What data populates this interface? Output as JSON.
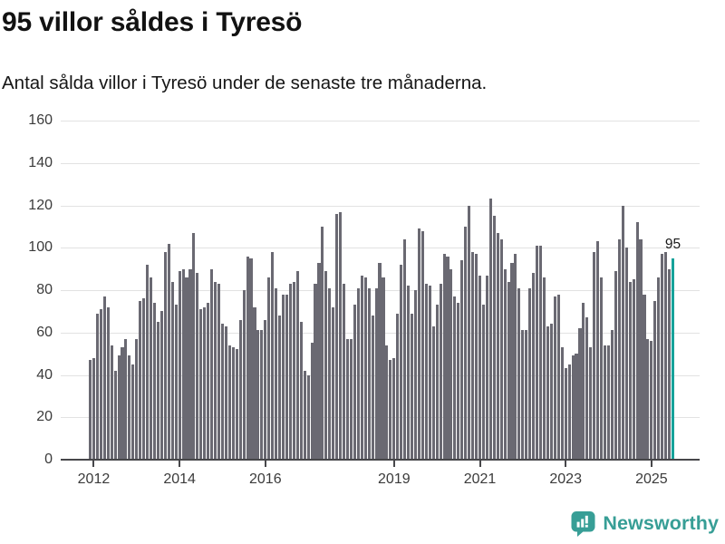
{
  "header": {
    "title": "95 villor såldes i Tyresö",
    "subtitle": "Antal sålda villor i Tyresö under de senaste tre månaderna."
  },
  "chart_data": {
    "type": "bar",
    "title": "95 villor såldes i Tyresö",
    "subtitle": "Antal sålda villor i Tyresö under de senaste tre månaderna.",
    "xlabel": "",
    "ylabel": "",
    "ylim": [
      0,
      160
    ],
    "y_ticks": [
      0,
      20,
      40,
      60,
      80,
      100,
      120,
      140,
      160
    ],
    "grid": "horizontal",
    "legend": "none",
    "x_ticks": [
      {
        "label": "2012",
        "index": 1
      },
      {
        "label": "2014",
        "index": 25
      },
      {
        "label": "2016",
        "index": 49
      },
      {
        "label": "2019",
        "index": 85
      },
      {
        "label": "2021",
        "index": 109
      },
      {
        "label": "2023",
        "index": 133
      },
      {
        "label": "2025",
        "index": 157
      }
    ],
    "values": [
      47,
      48,
      69,
      71,
      77,
      72,
      54,
      42,
      49,
      53,
      57,
      49,
      45,
      57,
      75,
      76,
      92,
      86,
      74,
      65,
      70,
      98,
      102,
      84,
      73,
      89,
      90,
      86,
      90,
      107,
      88,
      71,
      72,
      74,
      90,
      84,
      83,
      64,
      63,
      54,
      53,
      52,
      66,
      80,
      96,
      95,
      72,
      61,
      61,
      66,
      86,
      98,
      81,
      68,
      78,
      78,
      83,
      84,
      89,
      65,
      42,
      40,
      55,
      83,
      93,
      110,
      89,
      81,
      72,
      116,
      117,
      83,
      57,
      57,
      73,
      81,
      87,
      86,
      81,
      68,
      81,
      93,
      86,
      54,
      47,
      48,
      69,
      92,
      104,
      82,
      69,
      80,
      109,
      108,
      83,
      82,
      63,
      73,
      83,
      97,
      96,
      90,
      77,
      74,
      94,
      110,
      120,
      98,
      97,
      87,
      73,
      87,
      123,
      115,
      107,
      104,
      90,
      84,
      93,
      97,
      81,
      61,
      61,
      81,
      88,
      101,
      101,
      86,
      63,
      64,
      77,
      78,
      53,
      43,
      45,
      49,
      50,
      62,
      74,
      67,
      53,
      98,
      103,
      86,
      54,
      54,
      61,
      89,
      104,
      120,
      100,
      84,
      85,
      112,
      104,
      78,
      57,
      56,
      75,
      86,
      97,
      98,
      90,
      95
    ],
    "highlight": {
      "index": 163,
      "value": 95,
      "label": "95"
    },
    "colors": {
      "bar": "#6a6972",
      "highlight_bar": "#16a29a",
      "gridline": "#e2e2e2",
      "axis": "#47474a",
      "tick_text": "#3b3b3b",
      "annotation_text": "#1a1a1a",
      "brand": "#379e96"
    }
  },
  "footer": {
    "brand": "Newsworthy"
  }
}
